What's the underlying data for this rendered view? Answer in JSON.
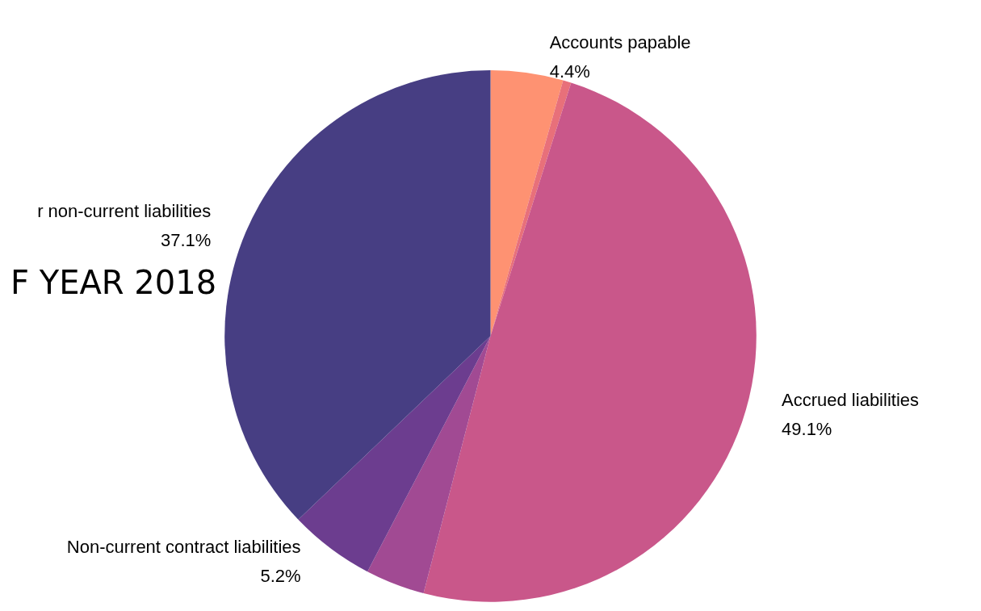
{
  "chart_data": {
    "type": "pie",
    "title": "F YEAR 2018",
    "categories": [
      "Accounts papable",
      null,
      "Accrued liabilities",
      null,
      "Non-current contract liabilities",
      "r non-current liabilities"
    ],
    "values": [
      4.4,
      0.5,
      49.1,
      3.6,
      5.2,
      37.1
    ],
    "colors": [
      "#fe9272",
      "#e8707a",
      "#c9578a",
      "#a14a93",
      "#6c3d8f",
      "#473e83"
    ],
    "value_labels": [
      "4.4%",
      null,
      "49.1%",
      null,
      "5.2%",
      "37.1%"
    ],
    "legend": false
  }
}
